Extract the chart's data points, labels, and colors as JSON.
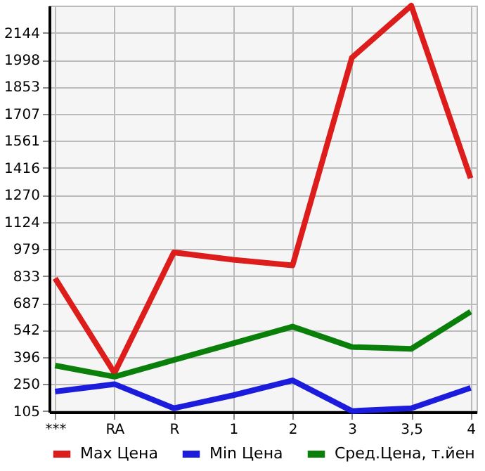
{
  "chart_data": {
    "type": "line",
    "categories": [
      "***",
      "RA",
      "R",
      "1",
      "2",
      "3",
      "3,5",
      "4"
    ],
    "series": [
      {
        "name": "Max Цена",
        "color": "#dd1c1c",
        "values": [
          820,
          310,
          960,
          920,
          890,
          2010,
          2290,
          1360
        ]
      },
      {
        "name": "Min Цена",
        "color": "#1c1cdd",
        "values": [
          210,
          250,
          120,
          190,
          270,
          105,
          120,
          230
        ]
      },
      {
        "name": "Сред.Цена, т.йен",
        "color": "#0a800a",
        "values": [
          350,
          290,
          380,
          470,
          560,
          450,
          440,
          640
        ]
      }
    ],
    "ylim": [
      100,
      2290
    ],
    "yticks": [
      105,
      250,
      396,
      542,
      687,
      833,
      979,
      1124,
      1270,
      1416,
      1561,
      1707,
      1853,
      1998,
      2144
    ],
    "grid": true,
    "legend": "bottom",
    "marker": "none",
    "line_style": "solid"
  }
}
